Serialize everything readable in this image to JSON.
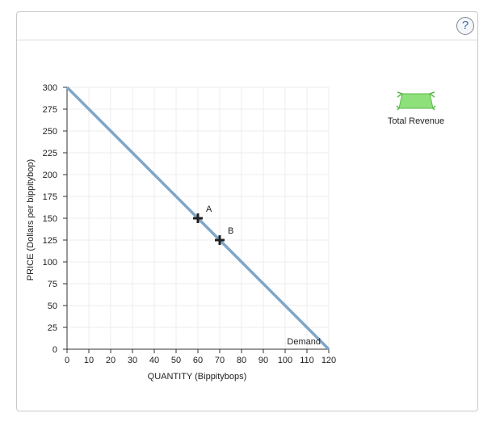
{
  "help": {
    "label": "?"
  },
  "legend": {
    "total_revenue_label": "Total Revenue",
    "swatch_color": "#8ee07a",
    "swatch_icon": "trapezoid-tool-icon"
  },
  "chart_data": {
    "type": "line",
    "title": "",
    "xlabel": "QUANTITY (Bippitybops)",
    "ylabel": "PRICE (Dollars per bippitybop)",
    "xlim": [
      0,
      120
    ],
    "ylim": [
      0,
      300
    ],
    "xticks": [
      0,
      10,
      20,
      30,
      40,
      50,
      60,
      70,
      80,
      90,
      100,
      110,
      120
    ],
    "yticks": [
      0,
      25,
      50,
      75,
      100,
      125,
      150,
      175,
      200,
      225,
      250,
      275,
      300
    ],
    "grid": true,
    "series": [
      {
        "name": "Demand",
        "color": "#7ea6c8",
        "x": [
          0,
          120
        ],
        "y": [
          300,
          0
        ]
      }
    ],
    "points": [
      {
        "label": "A",
        "x": 60,
        "y": 150
      },
      {
        "label": "B",
        "x": 70,
        "y": 125
      }
    ]
  }
}
